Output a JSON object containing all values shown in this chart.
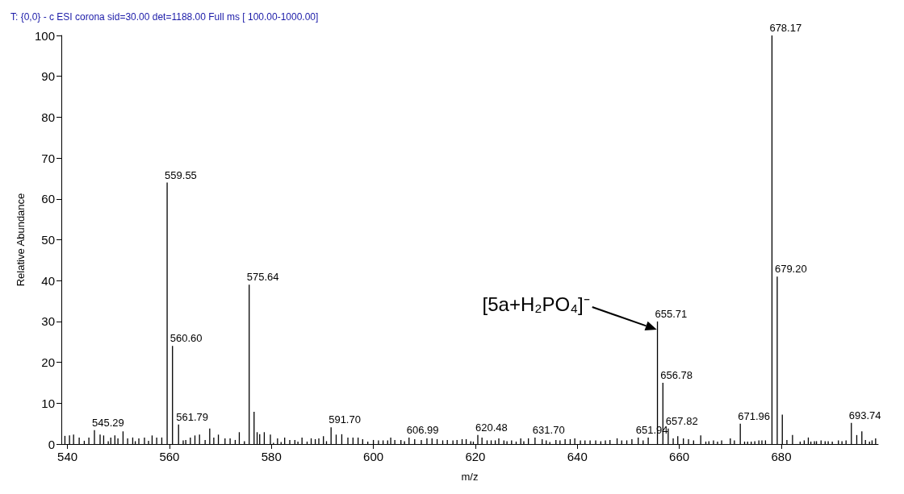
{
  "chart_data": {
    "type": "bar",
    "title": "T: {0,0} - c ESI corona sid=30.00 det=1188.00 Full ms [ 100.00-1000.00]",
    "xlabel": "m/z",
    "ylabel": "Relative Abundance",
    "annotations": [
      "[5a+H₂PO₄]⁻",
      {
        "text": "545.29",
        "x": 545.29,
        "y": 3.4
      },
      {
        "text": "559.55",
        "x": 559.55,
        "y": 64
      },
      {
        "text": "560.60",
        "x": 560.6,
        "y": 24
      },
      {
        "text": "561.79",
        "x": 561.79,
        "y": 4.8
      },
      {
        "text": "575.64",
        "x": 575.64,
        "y": 39
      },
      {
        "text": "591.70",
        "x": 591.7,
        "y": 4.1
      },
      {
        "text": "606.99",
        "x": 606.99,
        "y": 1.6
      },
      {
        "text": "620.48",
        "x": 620.48,
        "y": 2.2
      },
      {
        "text": "631.70",
        "x": 631.7,
        "y": 1.6
      },
      {
        "text": "651.94",
        "x": 651.94,
        "y": 1.6
      },
      {
        "text": "655.71",
        "x": 655.71,
        "y": 30
      },
      {
        "text": "656.78",
        "x": 656.78,
        "y": 15
      },
      {
        "text": "657.82",
        "x": 657.82,
        "y": 3.8
      },
      {
        "text": "671.96",
        "x": 671.96,
        "y": 5.0
      },
      {
        "text": "678.17",
        "x": 678.17,
        "y": 100
      },
      {
        "text": "679.20",
        "x": 679.2,
        "y": 41
      },
      {
        "text": "693.74",
        "x": 693.74,
        "y": 5.2
      }
    ],
    "xlim": [
      538.8,
      699
    ],
    "xticks": [
      540,
      560,
      580,
      600,
      620,
      640,
      660,
      680
    ],
    "ylim": [
      0,
      100
    ],
    "yticks": [
      0,
      10,
      20,
      30,
      40,
      50,
      60,
      70,
      80,
      90,
      100
    ],
    "series": [
      {
        "color": "#000000",
        "x": [
          539.5,
          540.4,
          541.2,
          542.3,
          543.3,
          544.2,
          545.29,
          546.4,
          547.1,
          548.0,
          548.5,
          549.3,
          549.9,
          550.9,
          551.8,
          552.8,
          553.3,
          554.0,
          555.1,
          555.9,
          556.6,
          557.5,
          558.5,
          559.55,
          560.6,
          561.79,
          562.7,
          563.2,
          564.1,
          565.0,
          565.9,
          567.0,
          567.9,
          568.7,
          569.6,
          570.9,
          571.9,
          572.9,
          573.7,
          574.7,
          575.64,
          576.6,
          577.2,
          577.7,
          578.6,
          579.8,
          580.4,
          581.2,
          581.9,
          582.6,
          583.6,
          584.6,
          585.2,
          586.0,
          587.0,
          587.8,
          588.6,
          589.3,
          590.2,
          590.8,
          591.7,
          592.7,
          593.8,
          595.0,
          596.0,
          597.0,
          597.9,
          598.9,
          600.0,
          601.0,
          601.9,
          602.8,
          603.4,
          604.2,
          605.4,
          606.1,
          606.99,
          608.1,
          609.4,
          610.5,
          611.5,
          612.5,
          613.6,
          614.5,
          615.6,
          616.4,
          617.4,
          618.2,
          619.1,
          619.6,
          620.48,
          621.3,
          622.3,
          623.1,
          623.9,
          624.6,
          625.6,
          626.2,
          627.1,
          628.0,
          628.9,
          629.5,
          630.4,
          631.7,
          633.1,
          633.9,
          634.6,
          635.8,
          636.6,
          637.6,
          638.6,
          639.5,
          640.6,
          641.5,
          642.5,
          643.6,
          644.6,
          645.5,
          646.4,
          647.8,
          648.7,
          649.7,
          650.7,
          651.94,
          652.9,
          653.9,
          655.71,
          656.78,
          657.82,
          658.8,
          659.7,
          660.8,
          661.8,
          662.8,
          664.2,
          665.2,
          665.8,
          666.7,
          667.5,
          668.3,
          670.0,
          670.8,
          671.96,
          672.8,
          673.4,
          674.1,
          674.8,
          675.6,
          676.2,
          676.9,
          678.17,
          679.2,
          680.2,
          681.1,
          682.2,
          683.7,
          684.5,
          685.3,
          685.8,
          686.5,
          686.9,
          687.8,
          688.6,
          689.2,
          690.0,
          691.2,
          691.9,
          692.7,
          693.74,
          694.8,
          695.8,
          696.5,
          697.3,
          697.8,
          698.5
        ],
        "values": [
          2.0,
          2.1,
          2.3,
          1.6,
          0.8,
          1.6,
          3.4,
          2.3,
          2.1,
          0.7,
          1.6,
          2.1,
          1.4,
          3.1,
          1.4,
          1.6,
          0.7,
          1.4,
          1.6,
          0.8,
          2.1,
          1.6,
          1.6,
          64,
          24,
          4.8,
          0.9,
          1.0,
          1.6,
          2.1,
          2.3,
          1.0,
          3.8,
          1.6,
          2.3,
          1.4,
          1.4,
          1.0,
          2.9,
          0.7,
          39,
          7.9,
          2.9,
          2.4,
          2.9,
          2.3,
          0.3,
          1.4,
          0.5,
          1.6,
          1.0,
          1.0,
          0.6,
          1.6,
          0.6,
          1.4,
          1.2,
          1.4,
          1.9,
          0.7,
          4.1,
          2.3,
          2.4,
          1.6,
          1.6,
          1.6,
          1.2,
          0.6,
          1.0,
          0.9,
          0.9,
          0.9,
          1.6,
          1.0,
          1.0,
          0.7,
          1.6,
          1.2,
          1.0,
          1.4,
          1.4,
          1.2,
          0.9,
          1.0,
          0.9,
          1.0,
          1.2,
          1.2,
          0.7,
          0.6,
          2.2,
          1.6,
          0.9,
          0.9,
          0.9,
          1.4,
          0.9,
          0.7,
          0.9,
          0.6,
          1.4,
          0.7,
          1.4,
          1.6,
          1.2,
          0.9,
          0.5,
          1.0,
          0.9,
          1.2,
          1.2,
          1.4,
          0.9,
          0.9,
          0.9,
          0.9,
          0.7,
          0.9,
          1.0,
          1.4,
          0.9,
          0.9,
          1.2,
          1.6,
          0.9,
          1.6,
          30,
          15,
          3.8,
          1.4,
          1.9,
          1.4,
          1.2,
          0.9,
          2.1,
          0.6,
          0.7,
          0.9,
          0.6,
          0.9,
          1.4,
          0.9,
          5.0,
          0.6,
          0.6,
          0.6,
          0.7,
          0.9,
          0.9,
          0.9,
          100,
          41,
          7.2,
          1.0,
          2.2,
          0.6,
          0.9,
          1.6,
          0.6,
          0.7,
          0.7,
          0.9,
          0.7,
          0.7,
          0.6,
          0.9,
          0.7,
          0.9,
          5.2,
          2.2,
          3.1,
          1.0,
          0.6,
          0.9,
          1.4
        ],
        "name": null
      }
    ]
  }
}
